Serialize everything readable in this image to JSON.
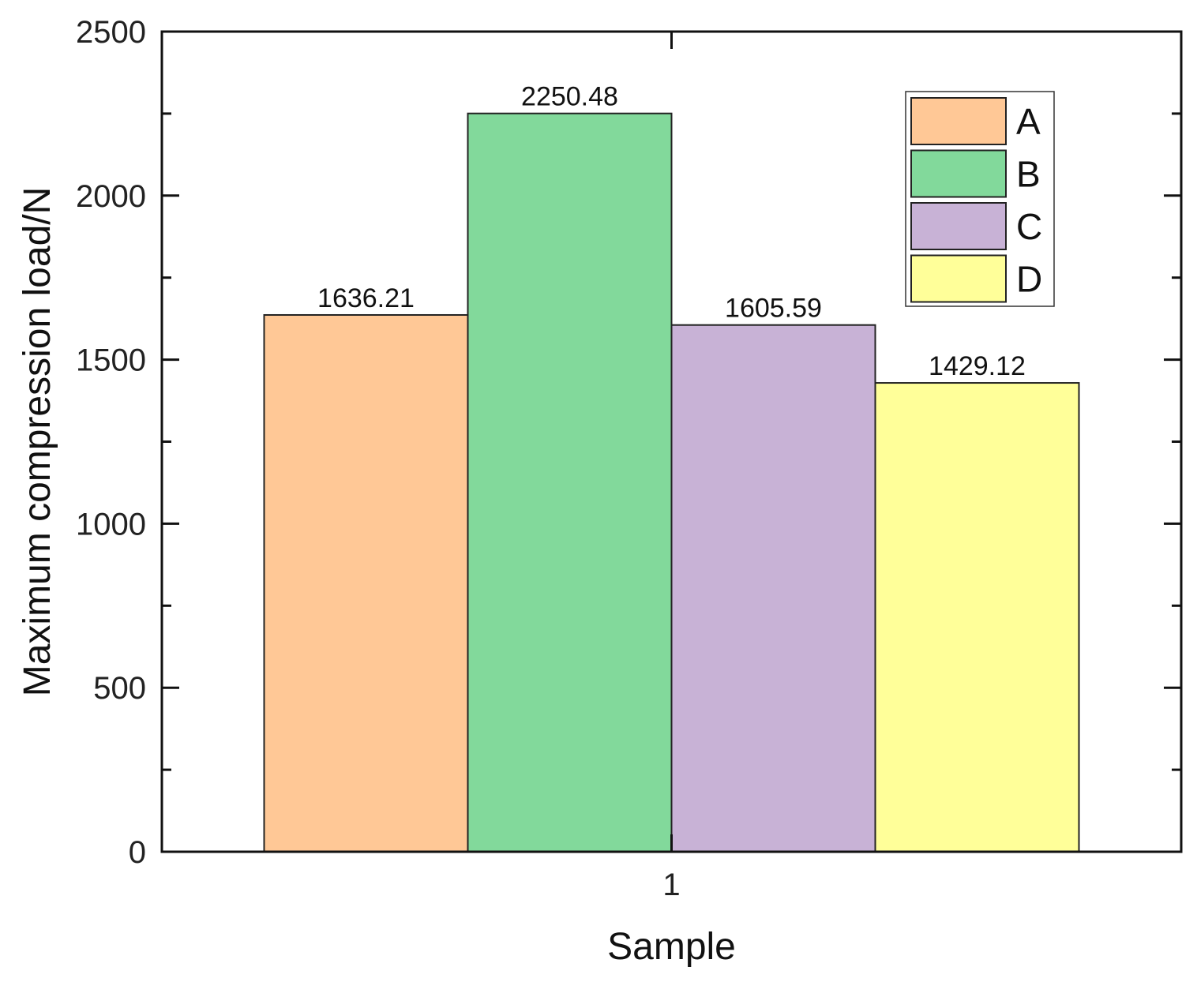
{
  "chart_data": {
    "type": "bar",
    "categories": [
      "1"
    ],
    "series": [
      {
        "name": "A",
        "values": [
          1636.21
        ],
        "color": "#FFC896"
      },
      {
        "name": "B",
        "values": [
          2250.48
        ],
        "color": "#82D99B"
      },
      {
        "name": "C",
        "values": [
          1605.59
        ],
        "color": "#C8B2D6"
      },
      {
        "name": "D",
        "values": [
          1429.12
        ],
        "color": "#FFFF99"
      }
    ],
    "data_labels": [
      "1636.21",
      "2250.48",
      "1605.59",
      "1429.12"
    ],
    "title": "",
    "xlabel": "Sample",
    "ylabel": "Maximum compression load/N",
    "ylim": [
      0,
      2500
    ],
    "yticks": [
      0,
      500,
      1000,
      1500,
      2000,
      2500
    ],
    "xtick_labels": [
      "1"
    ],
    "grid": false,
    "legend_position": "top-right"
  }
}
